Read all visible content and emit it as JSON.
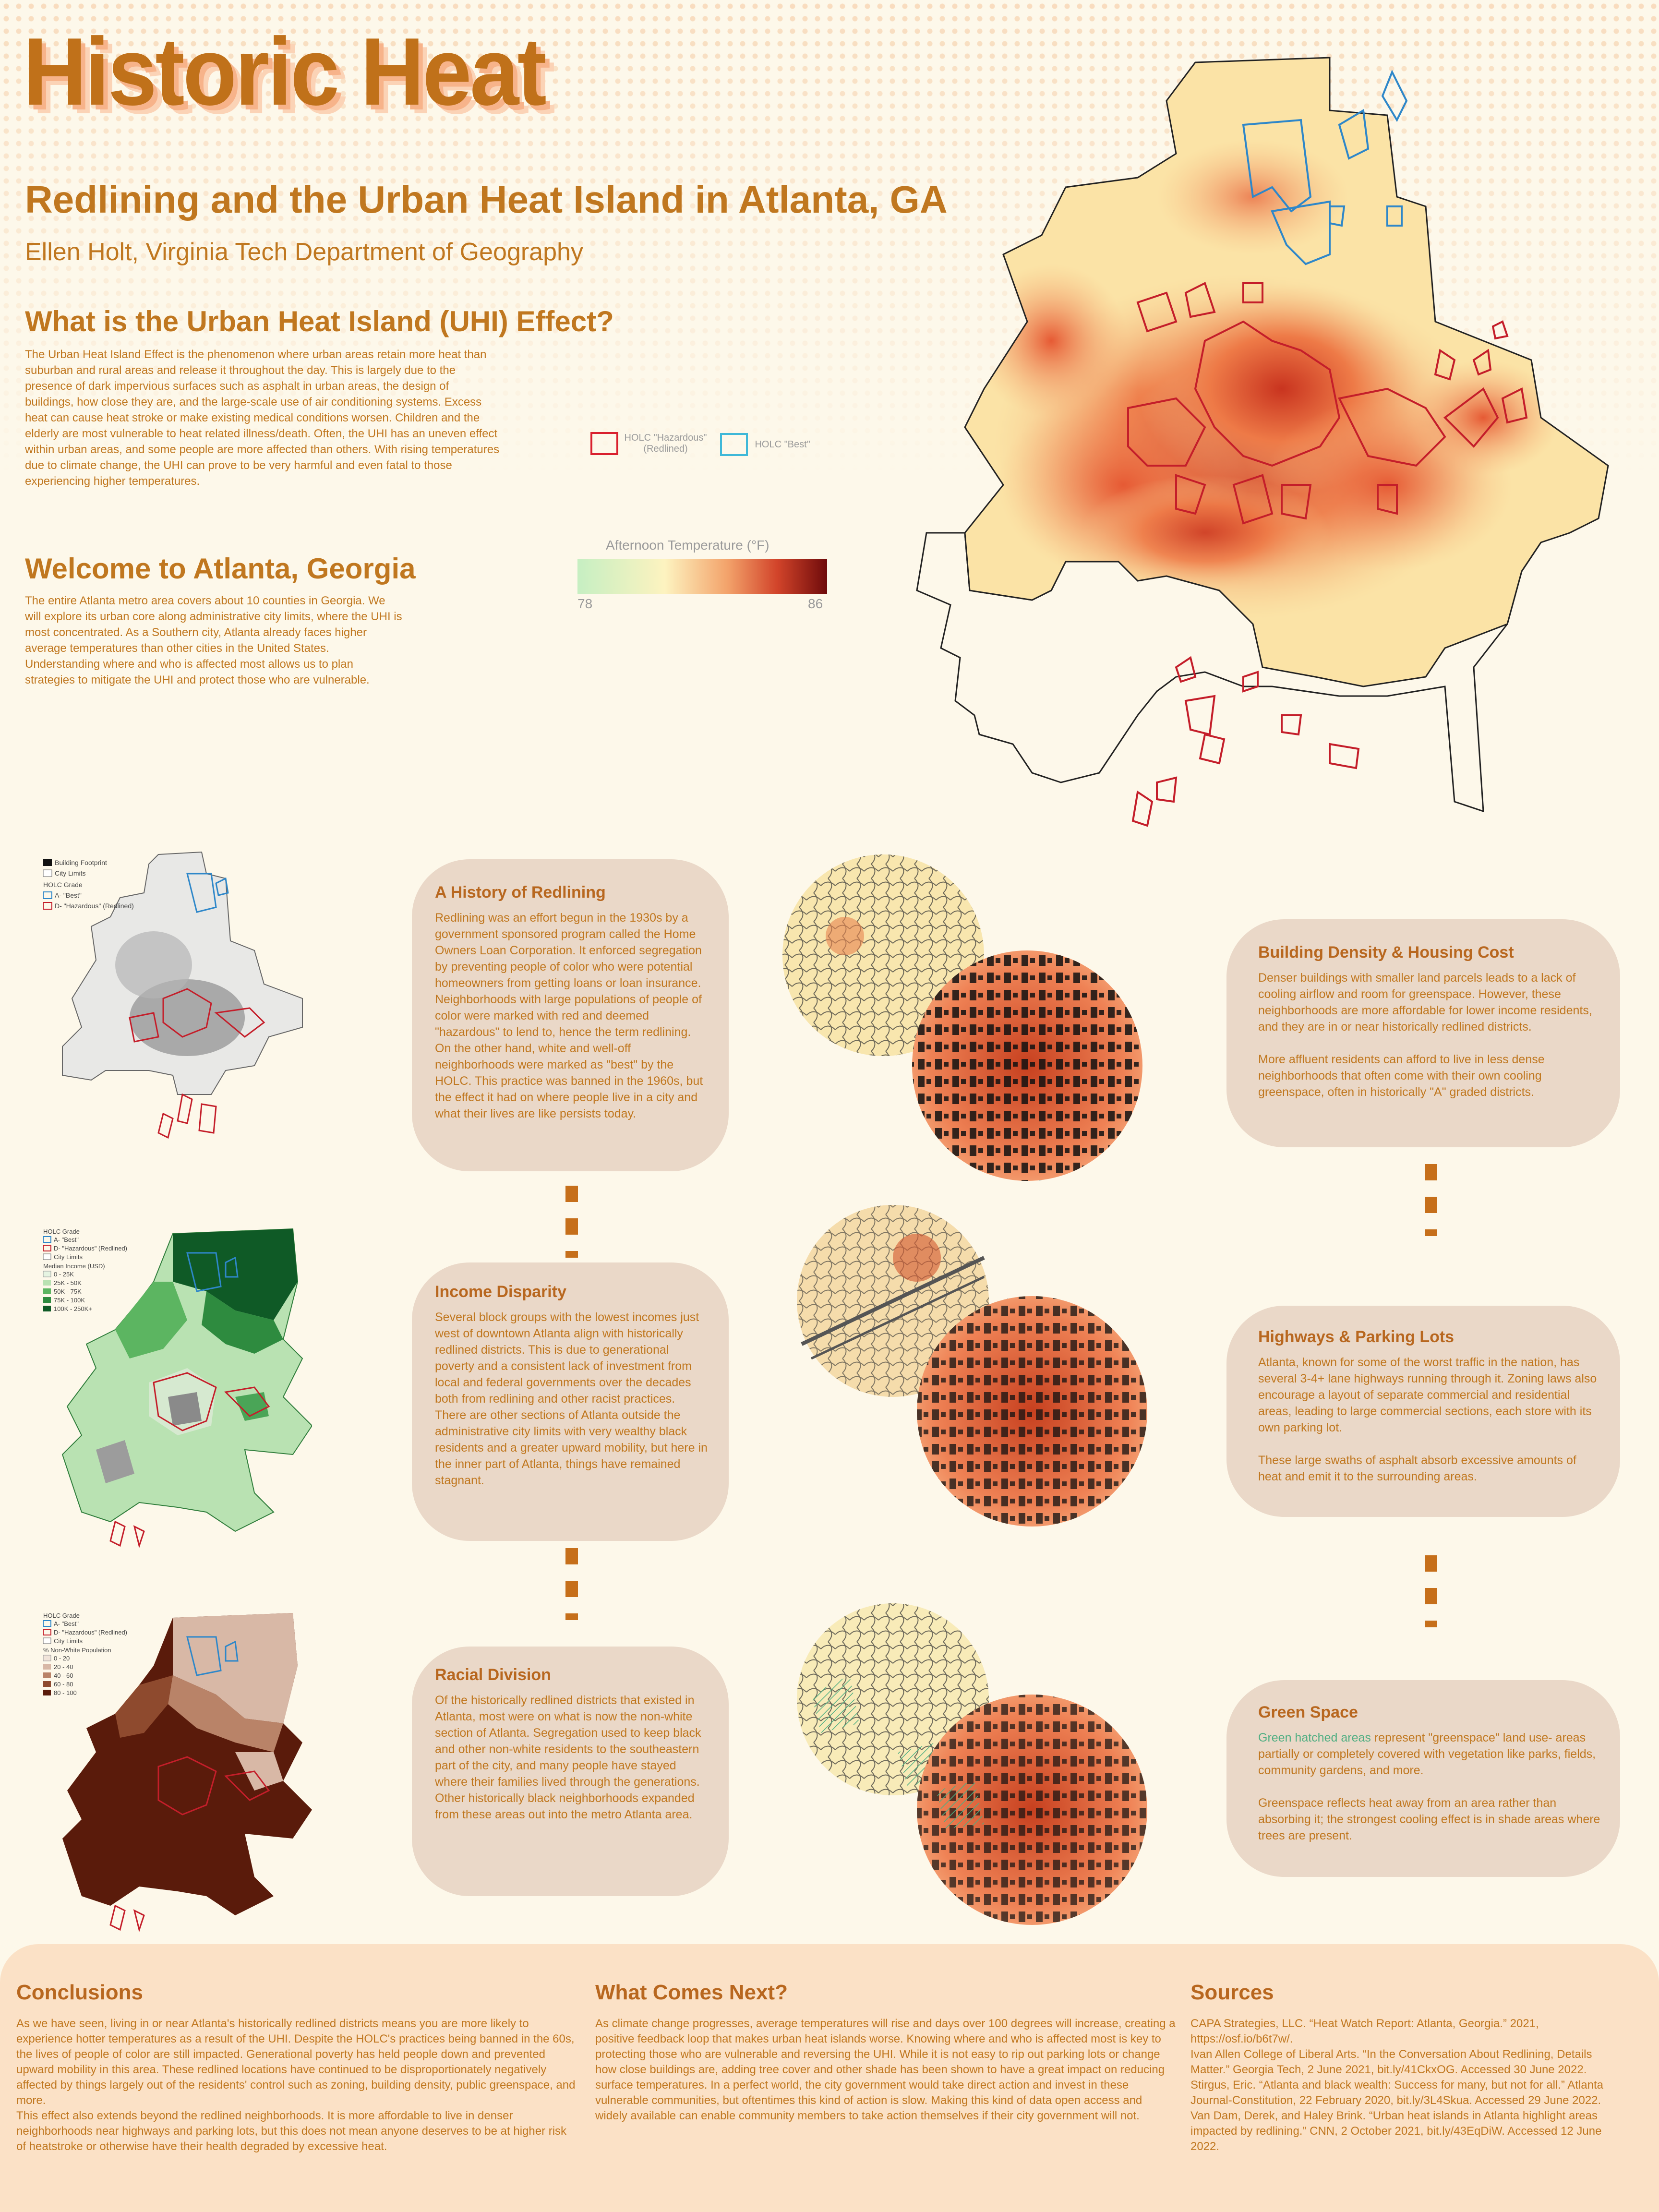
{
  "header": {
    "title": "Historic Heat",
    "subtitle": "Redlining and the Urban Heat Island in Atlanta, GA",
    "author": "Ellen Holt, Virginia Tech Department of Geography"
  },
  "uhi": {
    "heading": "What is the Urban Heat Island (UHI) Effect?",
    "body": "The Urban Heat Island Effect is the phenomenon where urban areas retain more heat than suburban and rural areas and release it throughout the day. This is largely due to the presence of dark impervious surfaces such as asphalt in urban areas, the design of buildings, how close they are, and the large-scale use of air conditioning systems. Excess heat can cause heat stroke or make existing medical conditions worsen. Children and the elderly are most vulnerable to heat related illness/death.  Often, the UHI has an uneven effect within urban areas, and some people are more affected than others. With rising temperatures due to climate change, the UHI can prove to be very harmful and even fatal to those experiencing higher temperatures."
  },
  "welcome": {
    "heading": "Welcome to Atlanta, Georgia",
    "body": "The entire Atlanta metro area covers about 10 counties in Georgia. We will explore its urban core along administrative city limits, where the UHI is most concentrated. As a Southern city, Atlanta already faces higher average temperatures than other cities in the United States. Understanding where and who is affected most allows us to plan strategies to mitigate the UHI and protect those who are vulnerable."
  },
  "map_legend": {
    "hazardous_label": "HOLC \"Hazardous\"",
    "hazardous_sub": "(Redlined)",
    "best_label": "HOLC \"Best\"",
    "temp_title": "Afternoon Temperature (°F)",
    "temp_min": "78",
    "temp_max": "86",
    "colors": {
      "hazardous": "#d9202e",
      "best": "#3fb8d8",
      "temp_low": "#c6efc2",
      "temp_mid": "#fdf3c0",
      "temp_high": "#6f0b0b"
    }
  },
  "small_map_1": {
    "legend": [
      "Building Footprint",
      "City Limits",
      "HOLC Grade",
      "A- \"Best\"",
      "D- \"Hazardous\" (Redlined)"
    ]
  },
  "small_map_2": {
    "legend": [
      "HOLC Grade",
      "A- \"Best\"",
      "D- \"Hazardous\" (Redlined)",
      "City Limits",
      "Median Income (USD)",
      "0 - 25K",
      "25K - 50K",
      "50K - 75K",
      "75K - 100K",
      "100K - 250K+"
    ]
  },
  "small_map_3": {
    "legend": [
      "HOLC Grade",
      "A- \"Best\"",
      "D- \"Hazardous\" (Redlined)",
      "City Limits",
      "% Non-White Population",
      "0 - 20",
      "20 - 40",
      "40 - 60",
      "60 - 80",
      "80 - 100"
    ]
  },
  "bubbles": {
    "redlining": {
      "title": "A History of Redlining",
      "body": "Redlining was an effort begun in the 1930s by a government sponsored program called the Home Owners Loan Corporation. It enforced segregation by preventing people of color who were potential homeowners from getting loans or loan insurance. Neighborhoods with large populations of people of color were marked with red and deemed \"hazardous\" to lend to, hence the term redlining. On the other hand, white and well-off neighborhoods were marked as \"best\" by the HOLC. This practice was banned in the 1960s, but the effect it had on where people live in a city and what their lives are like persists today."
    },
    "income": {
      "title": "Income Disparity",
      "body": "Several block groups with the lowest incomes just west of downtown Atlanta align with historically redlined districts. This is due to generational poverty and a consistent lack of investment from local and federal governments over the decades both from redlining and other racist practices. There are other sections of Atlanta outside the administrative city limits with very wealthy black residents and a greater upward mobility, but here in the inner part of Atlanta, things have remained stagnant."
    },
    "racial": {
      "title": "Racial Division",
      "body": "Of the historically redlined districts that existed in Atlanta, most were on what is now the non-white section of Atlanta. Segregation used to keep black and other non-white residents to the southeastern part of the city, and many people have stayed where their families lived through the generations. Other historically black neighborhoods expanded from these areas out into the metro Atlanta area."
    },
    "density": {
      "title": "Building Density & Housing Cost",
      "body1": "Denser buildings with smaller land parcels leads to a lack of cooling airflow and room for greenspace. However, these neighborhoods are more affordable for lower income residents, and they are in or near historically redlined districts.",
      "body2": "More affluent residents can afford to live in less dense neighborhoods that often come with their own cooling greenspace, often in historically \"A\" graded districts."
    },
    "highways": {
      "title": "Highways & Parking Lots",
      "body1": "Atlanta, known for some of the worst traffic in the nation, has several 3-4+ lane highways running through it. Zoning laws also encourage a layout of separate commercial and residential areas, leading to large commercial sections, each store with its own parking lot.",
      "body2": "These large swaths of asphalt absorb excessive amounts of heat and emit it to the surrounding areas."
    },
    "green": {
      "title": "Green Space",
      "green_phrase": "Green hatched areas",
      "body1_rest": " represent \"greenspace\" land use- areas partially or completely covered with vegetation like parks, fields, community gardens, and more.",
      "body2": "Greenspace reflects heat away from an area rather than absorbing it; the strongest cooling effect is in shade areas where trees are present."
    }
  },
  "bottom": {
    "conclusions": {
      "heading": "Conclusions",
      "body1": "As we have seen, living in or near Atlanta's historically redlined districts means you are more likely to experience hotter temperatures as a result of the UHI. Despite the HOLC's practices being banned in the 60s, the lives of people of color are still impacted. Generational poverty has held people down and prevented upward mobility in this area. These redlined locations have continued to be disproportionately negatively affected by things largely out of the residents' control such as zoning, building density, public greenspace, and more.",
      "body2": "This effect also extends beyond the redlined neighborhoods. It is more affordable to live in denser neighborhoods near highways and parking lots, but this does not mean anyone deserves to be at higher risk of heatstroke or otherwise have their health degraded by excessive heat."
    },
    "next": {
      "heading": "What Comes Next?",
      "body": "As climate change progresses, average temperatures will rise and days over 100 degrees will increase, creating a positive feedback loop that makes urban heat islands worse. Knowing where and who is affected most is key to protecting those who are vulnerable and reversing the UHI. While it is not easy to rip out parking lots or change how close buildings are, adding tree cover and other shade has been shown to have a great impact on reducing surface temperatures. In a perfect world, the city government would take direct action and invest in these vulnerable communities, but oftentimes this kind of action is slow. Making this kind of data open access and widely available can enable community members to take action themselves if their city government will not."
    },
    "sources": {
      "heading": "Sources",
      "items": [
        "CAPA Strategies, LLC. “Heat Watch Report: Atlanta, Georgia.” 2021, https://osf.io/b6t7w/.",
        "Ivan Allen College of Liberal Arts. “In the Conversation About Redlining, Details Matter.” Georgia Tech, 2 June 2021, bit.ly/41CkxOG. Accessed 30 June 2022.",
        "Stirgus, Eric. “Atlanta and black wealth: Success for many, but not for all.” Atlanta Journal-Constitution, 22 February 2020, bit.ly/3L4Skua. Accessed 29 June 2022.",
        "Van Dam, Derek, and Haley Brink. “Urban heat islands in Atlanta highlight areas impacted by redlining.” CNN, 2 October 2021, bit.ly/43EqDiW. Accessed 12 June 2022."
      ]
    }
  }
}
